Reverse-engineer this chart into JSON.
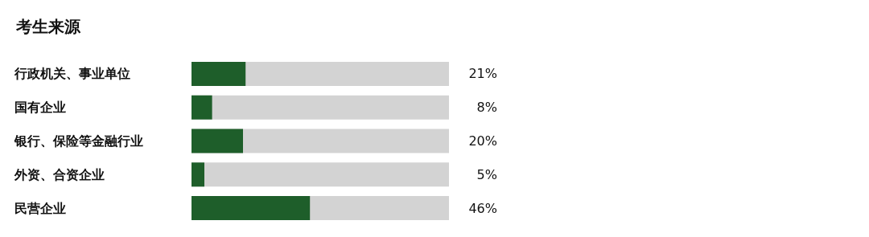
{
  "chart_data": {
    "type": "bar",
    "orientation": "horizontal",
    "title": "考生来源",
    "categories": [
      "行政机关、事业单位",
      "国有企业",
      "银行、保险等金融行业",
      "外资、合资企业",
      "民营企业"
    ],
    "values": [
      21,
      8,
      20,
      5,
      46
    ],
    "color": "#1e5e2a",
    "value_labels": [
      "21%",
      "8%",
      "20%",
      "5%",
      "46%"
    ],
    "xlim": [
      0,
      100
    ],
    "tick_labels": "y"
  }
}
